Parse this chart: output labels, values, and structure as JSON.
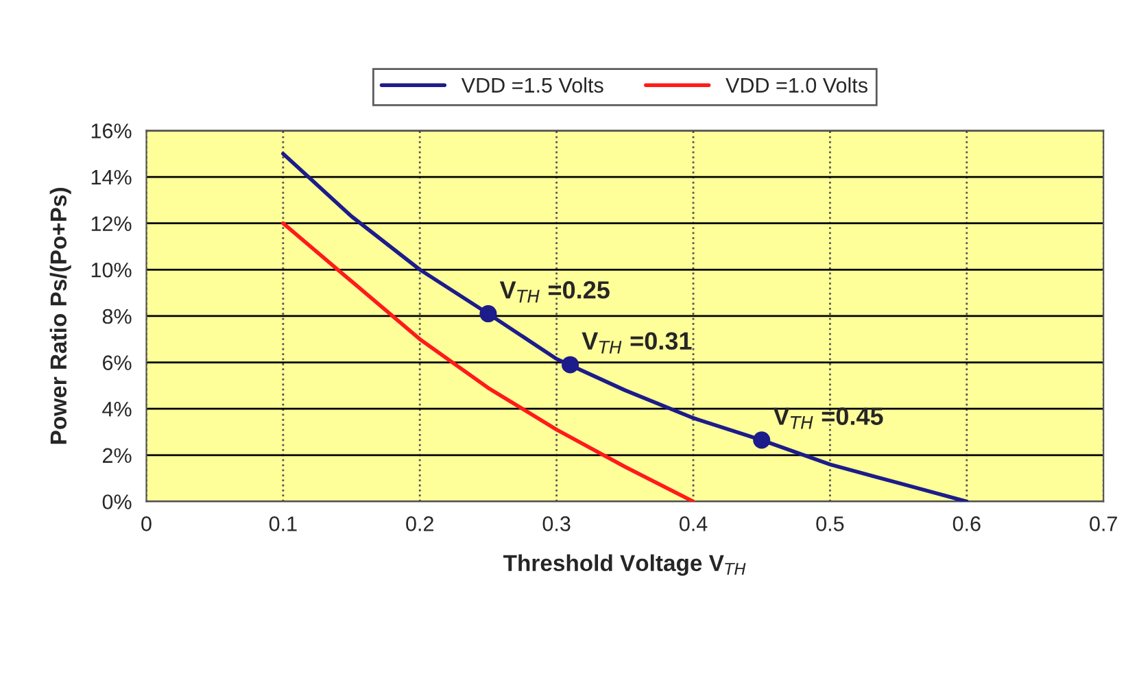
{
  "chart_data": {
    "type": "line",
    "xlabel": "Threshold Voltage V$_{TH}$",
    "ylabel": "Power Ratio Ps/(Po+Ps)",
    "series": [
      {
        "name": "VDD =1.5 Volts",
        "color": "#1c1c8a",
        "x": [
          0.1,
          0.15,
          0.2,
          0.25,
          0.3,
          0.35,
          0.4,
          0.45,
          0.5,
          0.55,
          0.6
        ],
        "values": [
          15,
          12.3,
          10,
          8.1,
          6.15,
          4.8,
          3.6,
          2.65,
          1.6,
          0.8,
          0
        ]
      },
      {
        "name": "VDD =1.0 Volts",
        "color": "#ff1a1a",
        "x": [
          0.1,
          0.15,
          0.2,
          0.25,
          0.3,
          0.35,
          0.4
        ],
        "values": [
          12,
          9.5,
          7,
          4.9,
          3.1,
          1.5,
          0
        ]
      },
      {
        "type": "scatter",
        "marker": "circle",
        "color": "#1c1c8a",
        "x": [
          0.25,
          0.31,
          0.45
        ],
        "values": [
          8.1,
          5.9,
          2.65
        ]
      }
    ],
    "annotations": [
      {
        "text": "V$_{TH}$ =0.25",
        "x": 0.25,
        "y": 8.1
      },
      {
        "text": "V$_{TH}$ =0.31",
        "x": 0.31,
        "y": 5.9
      },
      {
        "text": "V$_{TH}$ =0.45",
        "x": 0.45,
        "y": 2.65
      }
    ],
    "xlim": [
      0,
      0.7
    ],
    "xticks": [
      0,
      0.1,
      0.2,
      0.3,
      0.4,
      0.5,
      0.6,
      0.7
    ],
    "ylim": [
      0,
      16
    ],
    "yticks": [
      {
        "value": 0,
        "label": "0%"
      },
      {
        "value": 2,
        "label": "2%"
      },
      {
        "value": 4,
        "label": "4%"
      },
      {
        "value": 6,
        "label": "6%"
      },
      {
        "value": 8,
        "label": "8%"
      },
      {
        "value": 10,
        "label": "10%"
      },
      {
        "value": 12,
        "label": "12%"
      },
      {
        "value": 14,
        "label": "14%"
      },
      {
        "value": 16,
        "label": "16%"
      }
    ],
    "grid": true,
    "legend": "top",
    "line_style": "solid"
  }
}
